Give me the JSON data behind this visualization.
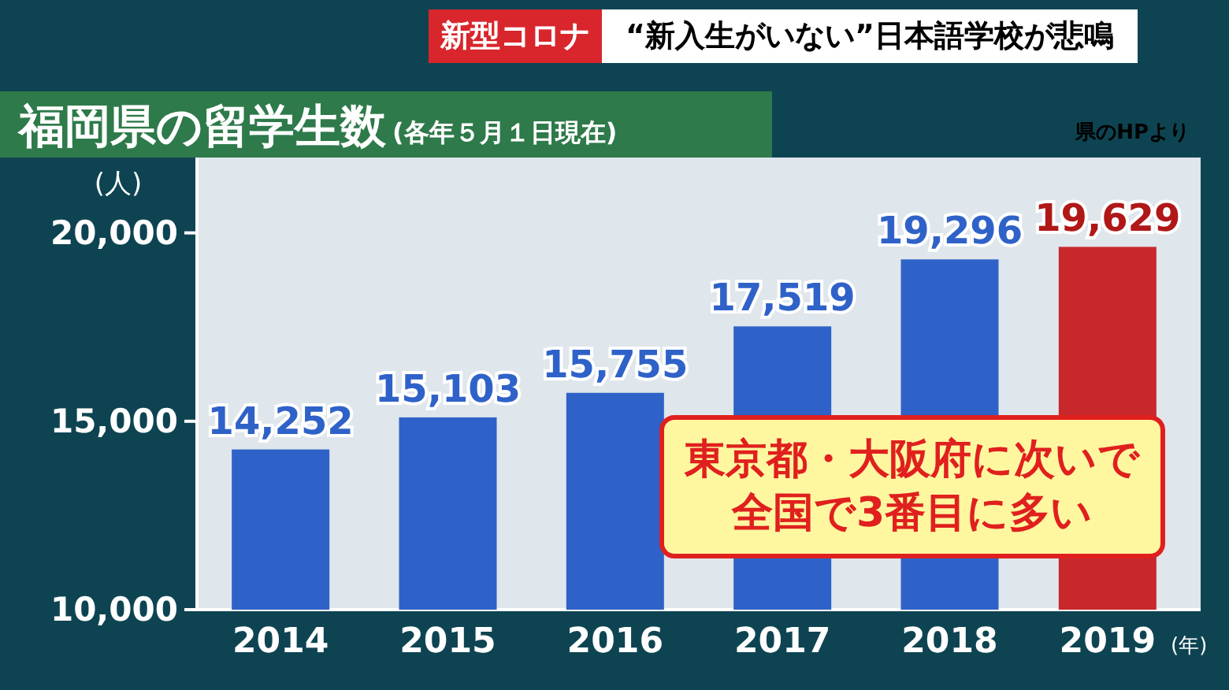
{
  "chart_data": {
    "type": "bar",
    "title": "福岡県の留学生数",
    "subtitle": "(各年５月１日現在)",
    "ylabel": "(人)",
    "xlabel": "(年)",
    "categories": [
      "2014",
      "2015",
      "2016",
      "2017",
      "2018",
      "2019"
    ],
    "values": [
      14252,
      15103,
      15755,
      17519,
      19296,
      19629
    ],
    "colors": [
      "#2f62c8",
      "#2f62c8",
      "#2f62c8",
      "#2f62c8",
      "#2f62c8",
      "#c8282c"
    ],
    "value_labels": [
      "14,252",
      "15,103",
      "15,755",
      "17,519",
      "19,296",
      "19,629"
    ],
    "ylim": [
      10000,
      22000
    ],
    "yticks": [
      {
        "value": 10000,
        "label": "10,000"
      },
      {
        "value": 15000,
        "label": "15,000"
      },
      {
        "value": 20000,
        "label": "20,000"
      }
    ],
    "annotations": [
      "新型コロナ",
      "“新入生がいない”日本語学校が悲鳴",
      "県のHPより",
      "東京都・大阪府に次いで",
      "全国で3番目に多い"
    ]
  }
}
